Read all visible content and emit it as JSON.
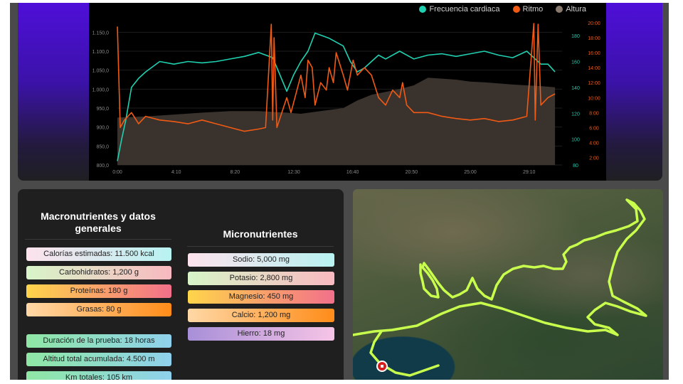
{
  "chart": {
    "legend": [
      {
        "label": "Frecuencia cardiaca",
        "color": "#1fd1b0"
      },
      {
        "label": "Ritmo",
        "color": "#f05a14"
      },
      {
        "label": "Altura",
        "color": "#8a7a6e"
      }
    ]
  },
  "chart_data": {
    "type": "line",
    "x_ticks": [
      "0:00",
      "4:10",
      "8:20",
      "12:30",
      "16:40",
      "20:50",
      "25:00",
      "29:10"
    ],
    "x_range": [
      0,
      31.5
    ],
    "y_left": {
      "ticks": [
        "1.150,0",
        "1.100,0",
        "1.050,0",
        "1.000,0",
        "950,0",
        "900,0",
        "850,0",
        "800,0"
      ],
      "range": [
        800,
        1175
      ]
    },
    "y_heart": {
      "ticks": [
        "180",
        "160",
        "140",
        "120",
        "100",
        "80"
      ],
      "range": [
        80,
        190
      ]
    },
    "y_pace": {
      "ticks": [
        "2:00",
        "4:00",
        "6:00",
        "8:00",
        "10:00",
        "12:00",
        "14:00",
        "16:00",
        "18:00",
        "20:00"
      ],
      "range": [
        1,
        20
      ]
    },
    "series": [
      {
        "name": "Altura",
        "axis": "left",
        "color": "#3a322c",
        "x": [
          0,
          2,
          4,
          6,
          8,
          10,
          12,
          13,
          14,
          16,
          17,
          18,
          20,
          21,
          22,
          24,
          25,
          26,
          27,
          28,
          29,
          30,
          31
        ],
        "y": [
          925,
          928,
          933,
          938,
          942,
          942,
          938,
          935,
          940,
          950,
          970,
          985,
          1000,
          1010,
          1030,
          1025,
          1020,
          1018,
          1015,
          1012,
          1010,
          1008,
          1005
        ]
      },
      {
        "name": "Frecuencia cardiaca",
        "axis": "heart",
        "color": "#1fd1b0",
        "x": [
          0,
          0.3,
          0.6,
          1,
          1.5,
          2,
          3,
          4,
          5,
          6,
          7,
          8,
          9,
          10,
          11,
          11.5,
          12,
          12.5,
          13,
          13.5,
          14,
          15,
          16,
          16.5,
          17,
          17.5,
          18,
          18.5,
          19,
          20,
          21,
          22,
          23,
          24,
          25,
          26,
          27,
          28,
          29,
          30,
          30.5,
          31
        ],
        "y": [
          83,
          100,
          115,
          140,
          147,
          152,
          160,
          158,
          160,
          159,
          160,
          162,
          164,
          167,
          163,
          150,
          137,
          150,
          160,
          168,
          182,
          178,
          172,
          160,
          152,
          155,
          160,
          165,
          162,
          168,
          162,
          165,
          166,
          164,
          166,
          168,
          165,
          163,
          168,
          158,
          158,
          152
        ]
      },
      {
        "name": "Ritmo",
        "axis": "pace",
        "color": "#f05a14",
        "x": [
          0,
          0.2,
          0.5,
          1,
          1.5,
          2,
          3,
          4,
          5,
          6,
          7,
          8,
          9,
          10,
          10.5,
          10.9,
          11,
          11.1,
          11.3,
          12,
          12.3,
          13,
          13.3,
          13.5,
          13.8,
          14,
          14.4,
          14.8,
          15,
          15.3,
          15.5,
          16,
          16.3,
          16.7,
          17,
          17.5,
          18,
          18.5,
          19,
          19.5,
          20,
          20.2,
          20.5,
          21,
          22,
          23,
          24,
          25,
          26,
          27,
          28,
          29,
          29.5,
          29.6,
          29.8,
          30,
          30.5,
          31
        ],
        "y": [
          19.5,
          6,
          7,
          8,
          6.5,
          7.5,
          7,
          6.8,
          6.5,
          7,
          6.5,
          6,
          5.5,
          5.8,
          6,
          19.8,
          7,
          18,
          6,
          10,
          8,
          13,
          10,
          15,
          14,
          9,
          12,
          11,
          14,
          12,
          16,
          13,
          11,
          15,
          13,
          14,
          13,
          10,
          9,
          11,
          10,
          12,
          9,
          8,
          8,
          7.5,
          7.2,
          7,
          7.2,
          6.8,
          7,
          7.5,
          19.9,
          7,
          19.8,
          9,
          10,
          10.5
        ]
      }
    ]
  },
  "macro": {
    "title": "Macronutrientes y datos generales",
    "items": [
      {
        "label": "Calorías estimadas: 11.500 kcal"
      },
      {
        "label": "Carbohidratos: 1,200 g"
      },
      {
        "label": "Proteínas: 180 g"
      },
      {
        "label": "Grasas: 80 g"
      },
      {
        "label": "Duración de la prueba: 18 horas"
      },
      {
        "label": "Altitud total acumulada: 4.500 m"
      },
      {
        "label": "Km totales: 105 km"
      }
    ]
  },
  "micro": {
    "title": "Micronutrientes",
    "items": [
      {
        "label": "Sodio: 5,000 mg"
      },
      {
        "label": "Potasio: 2,800 mg"
      },
      {
        "label": "Magnesio: 450 mg"
      },
      {
        "label": "Calcio: 1,200 mg"
      },
      {
        "label": "Hierro: 18 mg"
      }
    ]
  },
  "map": {
    "route_color": "#c8ff4d",
    "marker_color": "#d81b1b"
  }
}
